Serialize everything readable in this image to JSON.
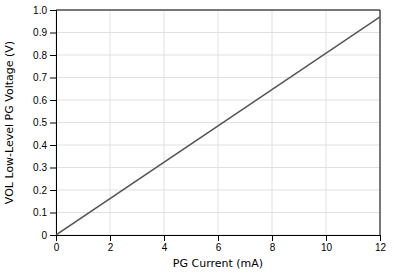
{
  "chart_data": {
    "type": "line",
    "title": "",
    "xlabel": "PG Current (mA)",
    "ylabel": "VOL Low-Level PG Voltage (V)",
    "x": [
      0,
      12
    ],
    "values": [
      0,
      0.97
    ],
    "color": "#555555",
    "xlim": [
      0,
      12
    ],
    "ylim": [
      0,
      1.0
    ],
    "xticks": [
      0,
      2,
      4,
      6,
      8,
      10,
      12
    ],
    "yticks": [
      0,
      0.1,
      0.2,
      0.3,
      0.4,
      0.5,
      0.6,
      0.7,
      0.8,
      0.9,
      {
        "value": 1.0,
        "label": "1.0"
      }
    ],
    "grid": true
  }
}
